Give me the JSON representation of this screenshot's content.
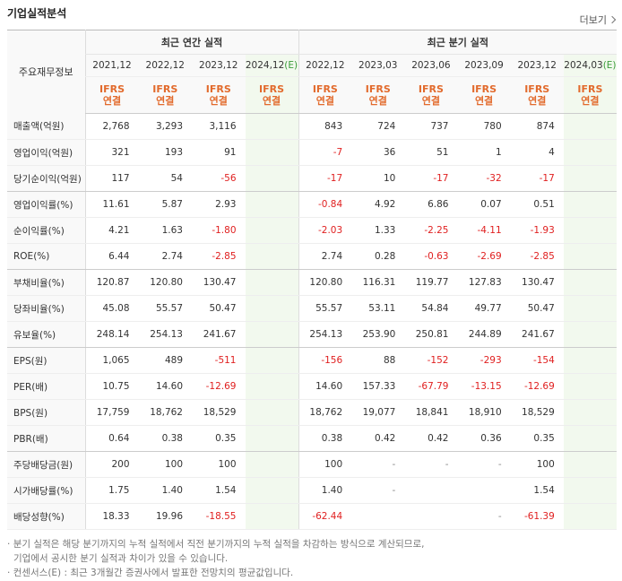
{
  "header": {
    "title": "기업실적분석",
    "more": "더보기"
  },
  "table": {
    "corner": "주요재무정보",
    "groups": [
      "최근 연간 실적",
      "최근 분기 실적"
    ],
    "columns": [
      {
        "date": "2021,12",
        "standard": "IFRS",
        "basis": "연결"
      },
      {
        "date": "2022,12",
        "standard": "IFRS",
        "basis": "연결"
      },
      {
        "date": "2023,12",
        "standard": "IFRS",
        "basis": "연결"
      },
      {
        "date": "2024,12",
        "mark": "(E)",
        "standard": "IFRS",
        "basis": "연결"
      },
      {
        "date": "2022,12",
        "standard": "IFRS",
        "basis": "연결"
      },
      {
        "date": "2023,03",
        "standard": "IFRS",
        "basis": "연결"
      },
      {
        "date": "2023,06",
        "standard": "IFRS",
        "basis": "연결"
      },
      {
        "date": "2023,09",
        "standard": "IFRS",
        "basis": "연결"
      },
      {
        "date": "2023,12",
        "standard": "IFRS",
        "basis": "연결"
      },
      {
        "date": "2024,03",
        "mark": "(E)",
        "standard": "IFRS",
        "basis": "연결"
      }
    ],
    "rows": [
      {
        "label": "매출액(억원)",
        "values": [
          "2,768",
          "3,293",
          "3,116",
          null,
          "843",
          "724",
          "737",
          "780",
          "874",
          null
        ]
      },
      {
        "label": "영업이익(억원)",
        "values": [
          "321",
          "193",
          "91",
          null,
          "-7",
          "36",
          "51",
          "1",
          "4",
          null
        ]
      },
      {
        "label": "당기순이익(억원)",
        "values": [
          "117",
          "54",
          "-56",
          null,
          "-17",
          "10",
          "-17",
          "-32",
          "-17",
          null
        ]
      },
      {
        "label": "영업이익률(%)",
        "values": [
          "11.61",
          "5.87",
          "2.93",
          null,
          "-0.84",
          "4.92",
          "6.86",
          "0.07",
          "0.51",
          null
        ]
      },
      {
        "label": "순이익률(%)",
        "values": [
          "4.21",
          "1.63",
          "-1.80",
          null,
          "-2.03",
          "1.33",
          "-2.25",
          "-4.11",
          "-1.93",
          null
        ]
      },
      {
        "label": "ROE(%)",
        "values": [
          "6.44",
          "2.74",
          "-2.85",
          null,
          "2.74",
          "0.28",
          "-0.63",
          "-2.69",
          "-2.85",
          null
        ]
      },
      {
        "label": "부채비율(%)",
        "values": [
          "120.87",
          "120.80",
          "130.47",
          null,
          "120.80",
          "116.31",
          "119.77",
          "127.83",
          "130.47",
          null
        ]
      },
      {
        "label": "당좌비율(%)",
        "values": [
          "45.08",
          "55.57",
          "50.47",
          null,
          "55.57",
          "53.11",
          "54.84",
          "49.77",
          "50.47",
          null
        ]
      },
      {
        "label": "유보율(%)",
        "values": [
          "248.14",
          "254.13",
          "241.67",
          null,
          "254.13",
          "253.90",
          "250.81",
          "244.89",
          "241.67",
          null
        ]
      },
      {
        "label": "EPS(원)",
        "values": [
          "1,065",
          "489",
          "-511",
          null,
          "-156",
          "88",
          "-152",
          "-293",
          "-154",
          null
        ]
      },
      {
        "label": "PER(배)",
        "values": [
          "10.75",
          "14.60",
          "-12.69",
          null,
          "14.60",
          "157.33",
          "-67.79",
          "-13.15",
          "-12.69",
          null
        ]
      },
      {
        "label": "BPS(원)",
        "values": [
          "17,759",
          "18,762",
          "18,529",
          null,
          "18,762",
          "19,077",
          "18,841",
          "18,910",
          "18,529",
          null
        ]
      },
      {
        "label": "PBR(배)",
        "values": [
          "0.64",
          "0.38",
          "0.35",
          null,
          "0.38",
          "0.42",
          "0.42",
          "0.36",
          "0.35",
          null
        ]
      },
      {
        "label": "주당배당금(원)",
        "values": [
          "200",
          "100",
          "100",
          null,
          "100",
          "-",
          "-",
          "-",
          "100",
          null
        ]
      },
      {
        "label": "시가배당률(%)",
        "values": [
          "1.75",
          "1.40",
          "1.54",
          null,
          "1.40",
          "-",
          null,
          null,
          "1.54",
          null
        ]
      },
      {
        "label": "배당성향(%)",
        "values": [
          "18.33",
          "19.96",
          "-18.55",
          null,
          "-62.44",
          null,
          null,
          "-",
          "-61.39",
          null
        ]
      }
    ]
  },
  "notes": [
    "분기 실적은 해당 분기까지의 누적 실적에서 직전 분기까지의 누적 실적을 차감하는 방식으로 계산되므로,",
    "기업에서 공시한 분기 실적과 차이가 있을 수 있습니다.",
    "컨센서스(E) : 최근 3개월간 증권사에서 발표한 전망치의 평균값입니다."
  ]
}
